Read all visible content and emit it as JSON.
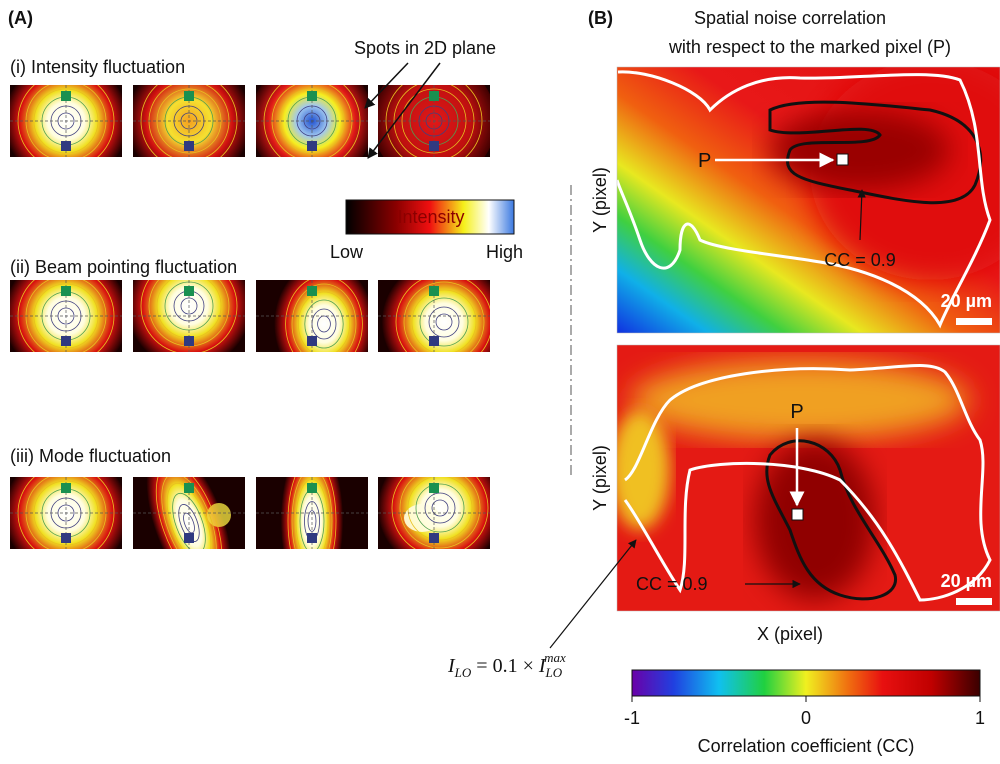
{
  "panel_a": {
    "label": "(A)",
    "rows": [
      {
        "title": "(i) Intensity fluctuation"
      },
      {
        "title": "(ii) Beam pointing fluctuation"
      },
      {
        "title": "(iii) Mode fluctuation"
      }
    ],
    "spots_label": "Spots in 2D plane",
    "intensity_bar": {
      "title": "Intensity",
      "low": "Low",
      "high": "High"
    }
  },
  "panel_b": {
    "label": "(B)",
    "title": [
      "Spatial noise correlation",
      "with respect to the marked pixel (P)"
    ],
    "maps": [
      {
        "y_label": "Y (pixel)",
        "point": "P",
        "contour_label": "CC = 0.9",
        "scale_bar": "20 µm"
      },
      {
        "y_label": "Y (pixel)",
        "point": "P",
        "contour_label": "CC = 0.9",
        "scale_bar": "20 µm"
      }
    ],
    "x_label": "X (pixel)",
    "annotation": {
      "lhs": "I",
      "lhs_sub": "LO",
      "op": " = 0.1 × ",
      "rhs": "I",
      "rhs_sub": "LO",
      "rhs_sup": "max"
    },
    "colorbar": {
      "lim": [
        -1,
        1
      ],
      "ticks": [
        -1,
        0,
        1
      ],
      "label": "Correlation coefficient (CC)"
    }
  }
}
